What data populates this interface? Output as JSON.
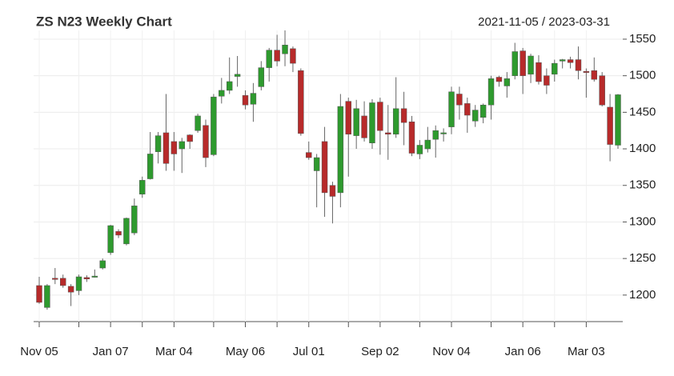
{
  "chart_data": {
    "type": "candlestick",
    "title": "ZS N23 Weekly Chart",
    "subtitle": "2021-11-05 / 2023-03-31",
    "categories": [
      "Nov 05",
      null,
      null,
      null,
      null,
      null,
      null,
      null,
      null,
      "Jan 07",
      null,
      null,
      null,
      null,
      null,
      null,
      null,
      "Mar 04",
      null,
      null,
      null,
      null,
      null,
      null,
      null,
      null,
      "May 06",
      null,
      null,
      null,
      null,
      null,
      null,
      null,
      "Jul 01",
      null,
      null,
      null,
      null,
      null,
      null,
      null,
      null,
      "Sep 02",
      null,
      null,
      null,
      null,
      null,
      null,
      null,
      null,
      "Nov 04",
      null,
      null,
      null,
      null,
      null,
      null,
      null,
      null,
      "Jan 06",
      null,
      null,
      null,
      null,
      null,
      null,
      null,
      "Mar 03",
      null,
      null,
      null,
      null
    ],
    "open": [
      1213,
      1183,
      1223,
      1223,
      1212,
      1206,
      1224,
      1225,
      1237,
      1258,
      1287,
      1270,
      1285,
      1338,
      1359,
      1396,
      1422,
      1410,
      1400,
      1419,
      1425,
      1432,
      1392,
      1472,
      1480,
      1499,
      1473,
      1461,
      1485,
      1511,
      1535,
      1530,
      1537,
      1507,
      1395,
      1370,
      1410,
      1350,
      1340,
      1465,
      1418,
      1445,
      1408,
      1464,
      1422,
      1420,
      1455,
      1437,
      1393,
      1400,
      1413,
      1422,
      1430,
      1475,
      1462,
      1438,
      1443,
      1460,
      1498,
      1486,
      1500,
      1534,
      1502,
      1518,
      1500,
      1502,
      1520,
      1522,
      1522,
      1506,
      1507,
      1500,
      1457,
      1405
    ],
    "high": [
      1225,
      1215,
      1237,
      1228,
      1215,
      1228,
      1227,
      1235,
      1250,
      1296,
      1290,
      1306,
      1332,
      1362,
      1423,
      1423,
      1475,
      1423,
      1415,
      1420,
      1448,
      1440,
      1475,
      1497,
      1525,
      1527,
      1480,
      1490,
      1520,
      1538,
      1556,
      1562,
      1540,
      1510,
      1410,
      1393,
      1430,
      1355,
      1475,
      1470,
      1467,
      1465,
      1468,
      1470,
      1460,
      1498,
      1478,
      1445,
      1412,
      1430,
      1432,
      1428,
      1485,
      1485,
      1470,
      1460,
      1462,
      1500,
      1500,
      1505,
      1545,
      1538,
      1530,
      1528,
      1510,
      1522,
      1523,
      1526,
      1540,
      1510,
      1525,
      1505,
      1475,
      1475
    ],
    "low": [
      1188,
      1180,
      1215,
      1210,
      1185,
      1200,
      1218,
      1224,
      1235,
      1255,
      1278,
      1268,
      1282,
      1333,
      1358,
      1380,
      1370,
      1370,
      1367,
      1400,
      1422,
      1375,
      1390,
      1462,
      1475,
      1485,
      1454,
      1437,
      1480,
      1492,
      1513,
      1513,
      1505,
      1418,
      1385,
      1320,
      1307,
      1298,
      1320,
      1362,
      1400,
      1410,
      1400,
      1392,
      1385,
      1415,
      1405,
      1390,
      1386,
      1395,
      1388,
      1410,
      1420,
      1440,
      1422,
      1430,
      1435,
      1440,
      1485,
      1470,
      1495,
      1475,
      1490,
      1488,
      1475,
      1492,
      1510,
      1510,
      1495,
      1470,
      1492,
      1458,
      1383,
      1400
    ],
    "close": [
      1190,
      1213,
      1222,
      1213,
      1204,
      1225,
      1222,
      1226,
      1247,
      1295,
      1282,
      1305,
      1322,
      1357,
      1393,
      1418,
      1380,
      1393,
      1410,
      1410,
      1445,
      1388,
      1471,
      1480,
      1492,
      1502,
      1460,
      1476,
      1511,
      1535,
      1520,
      1542,
      1517,
      1421,
      1388,
      1388,
      1340,
      1335,
      1458,
      1420,
      1455,
      1415,
      1463,
      1425,
      1420,
      1455,
      1436,
      1394,
      1405,
      1412,
      1425,
      1422,
      1478,
      1460,
      1446,
      1453,
      1460,
      1496,
      1492,
      1496,
      1533,
      1500,
      1527,
      1492,
      1487,
      1517,
      1522,
      1518,
      1507,
      1505,
      1495,
      1460,
      1406,
      1474
    ],
    "up_color": "#2e9a2e",
    "down_color": "#b72a2a",
    "ylim": [
      1167,
      1562
    ],
    "yticks": [
      1200,
      1250,
      1300,
      1350,
      1400,
      1450,
      1500,
      1550
    ],
    "grid": true
  }
}
